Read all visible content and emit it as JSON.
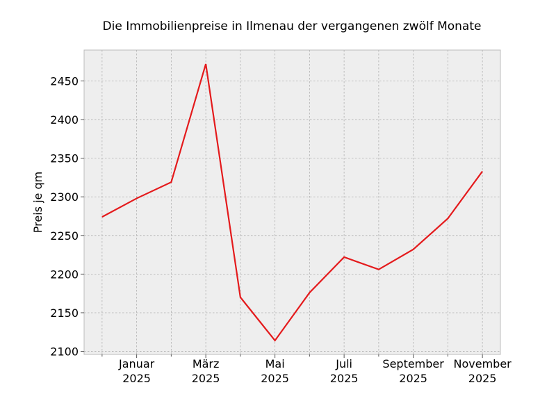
{
  "chart_data": {
    "type": "line",
    "title": "Die Immobilienpreise in Ilmenau der vergangenen zwölf Monate",
    "xlabel": "",
    "ylabel": "Preis je qm",
    "x": [
      "2024-12",
      "2025-01",
      "2025-02",
      "2025-03",
      "2025-04",
      "2025-05",
      "2025-06",
      "2025-07",
      "2025-08",
      "2025-09",
      "2025-10",
      "2025-11"
    ],
    "series": [
      {
        "values": [
          2274,
          2298,
          2319,
          2472,
          2170,
          2114,
          2176,
          2222,
          2206,
          2232,
          2272,
          2333
        ],
        "color": "#e41a1c"
      }
    ],
    "ylim": [
      2096,
      2490
    ],
    "yticks": [
      2100,
      2150,
      2200,
      2250,
      2300,
      2350,
      2400,
      2450
    ],
    "xtick_labels": [
      {
        "x": "2025-01",
        "line1": "Januar",
        "line2": "2025"
      },
      {
        "x": "2025-03",
        "line1": "März",
        "line2": "2025"
      },
      {
        "x": "2025-05",
        "line1": "Mai",
        "line2": "2025"
      },
      {
        "x": "2025-07",
        "line1": "Juli",
        "line2": "2025"
      },
      {
        "x": "2025-09",
        "line1": "September",
        "line2": "2025"
      },
      {
        "x": "2025-11",
        "line1": "November",
        "line2": "2025"
      }
    ],
    "grid": true,
    "background": "#eeeeee"
  }
}
